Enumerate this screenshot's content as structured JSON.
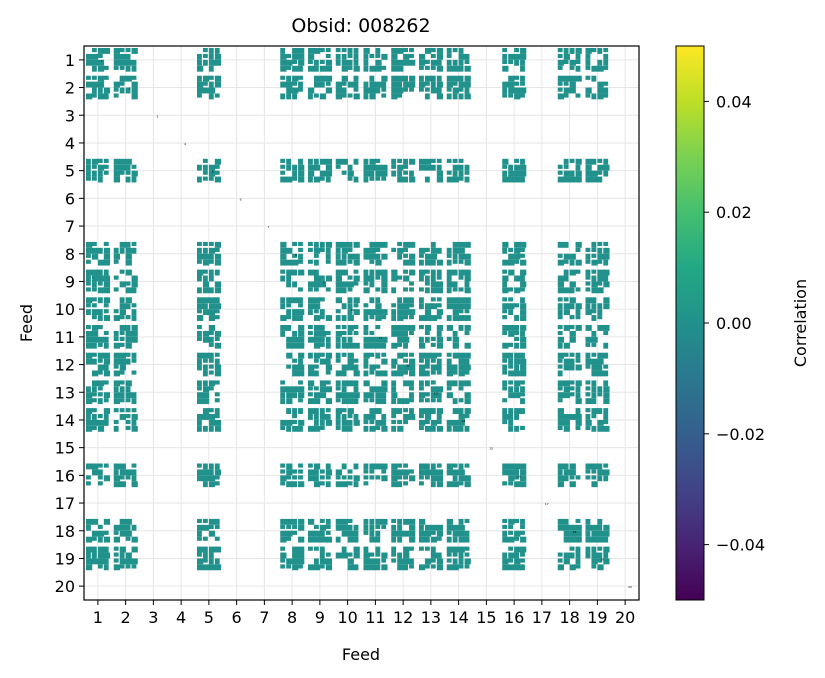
{
  "chart_data": {
    "type": "heatmap",
    "title": "Obsid: 008262",
    "xlabel": "Feed",
    "ylabel": "Feed",
    "feeds": [
      "1",
      "2",
      "3",
      "4",
      "5",
      "6",
      "7",
      "8",
      "9",
      "10",
      "11",
      "12",
      "13",
      "14",
      "15",
      "16",
      "17",
      "18",
      "19",
      "20"
    ],
    "active_feeds": [
      1,
      2,
      5,
      8,
      9,
      10,
      11,
      12,
      13,
      14,
      16,
      18,
      19
    ],
    "inactive_feeds": [
      3,
      4,
      6,
      7,
      15,
      17,
      20
    ],
    "cell_value": 0.0,
    "grid": true,
    "colorbar": {
      "label": "Correlation",
      "vmin": -0.05,
      "vmax": 0.05,
      "ticks": [
        0.04,
        0.02,
        0.0,
        -0.02,
        -0.04
      ],
      "tick_labels": [
        "0.04",
        "0.02",
        "0.00",
        "−0.02",
        "−0.04"
      ],
      "colormap": "viridis"
    },
    "colors": {
      "cell": "#21918c",
      "grid": "#e6e6e6",
      "axes": "#000000"
    }
  }
}
